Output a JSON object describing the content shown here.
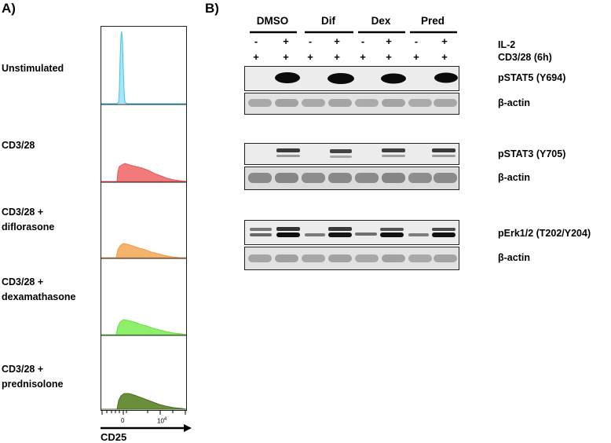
{
  "panel_a": {
    "label": "A)",
    "rows": [
      {
        "label": "Unstimulated",
        "color": "#5bd3ee"
      },
      {
        "label": "CD3/28",
        "color": "#f17a7a"
      },
      {
        "label": "CD3/28 +\ndiflorasone",
        "color": "#f5b46e"
      },
      {
        "label": "CD3/28 +\ndexamathasone",
        "color": "#8ef06a"
      },
      {
        "label": "CD3/28 +\nprednisolone",
        "color": "#6a8f3a"
      }
    ],
    "axis": {
      "tick_0": "0",
      "tick_1": "10",
      "tick_1_exp": "4",
      "title": "CD25"
    }
  },
  "panel_b": {
    "label": "B)",
    "groups": [
      "DMSO",
      "Dif",
      "Dex",
      "Pred"
    ],
    "treatments": [
      {
        "label": "IL-2",
        "signs": [
          "-",
          "+",
          "-",
          "+",
          "-",
          "+",
          "-",
          "+"
        ]
      },
      {
        "label": "CD3/28 (6h)",
        "signs": [
          "+",
          "+",
          "+",
          "+",
          "+",
          "+",
          "+",
          "+"
        ]
      }
    ],
    "blots": [
      {
        "label": "pSTAT5 (Y694)"
      },
      {
        "label": "β-actin"
      },
      {
        "label": "pSTAT3 (Y705)"
      },
      {
        "label": "β-actin"
      },
      {
        "label": "pErk1/2 (T202/Y204)"
      },
      {
        "label": "β-actin"
      }
    ]
  }
}
